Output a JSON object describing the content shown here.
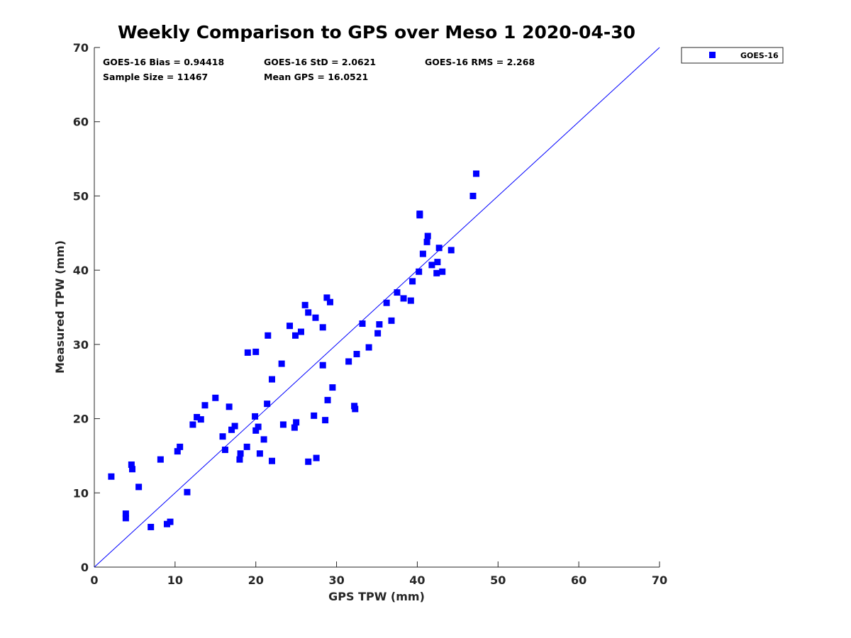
{
  "chart_data": {
    "type": "scatter",
    "title": "Weekly Comparison to GPS over Meso 1 2020-04-30",
    "xlabel": "GPS TPW (mm)",
    "ylabel": "Measured TPW (mm)",
    "xlim": [
      0,
      70
    ],
    "ylim": [
      0,
      70
    ],
    "xticks": [
      "0",
      "10",
      "20",
      "30",
      "40",
      "50",
      "60",
      "70"
    ],
    "yticks": [
      "0",
      "10",
      "20",
      "30",
      "40",
      "50",
      "60",
      "70"
    ],
    "grid": false,
    "legend_position": "outside-top-right",
    "marker_color": "#0000ff",
    "line_color": "#0000ff",
    "reference_line": {
      "name": "1:1 line",
      "x": [
        0,
        70
      ],
      "y": [
        0,
        70
      ]
    },
    "stats": [
      {
        "label": "GOES-16 Bias = 0.94418"
      },
      {
        "label": "GOES-16 StD = 2.0621"
      },
      {
        "label": "GOES-16 RMS = 2.268"
      },
      {
        "label": "Sample Size = 11467"
      },
      {
        "label": "Mean GPS = 16.0521"
      }
    ],
    "series": [
      {
        "name": "GOES-16",
        "marker": "square",
        "points": [
          [
            2.1,
            12.2
          ],
          [
            4.6,
            13.8
          ],
          [
            4.7,
            13.2
          ],
          [
            27.5,
            14.7
          ],
          [
            26.5,
            14.2
          ],
          [
            32.2,
            21.7
          ],
          [
            32.3,
            21.3
          ],
          [
            28.6,
            19.8
          ],
          [
            27.2,
            20.4
          ],
          [
            24.8,
            18.8
          ],
          [
            25.0,
            19.5
          ],
          [
            19.9,
            20.3
          ],
          [
            18.9,
            16.2
          ],
          [
            22.0,
            14.3
          ],
          [
            20.0,
            18.4
          ],
          [
            21.0,
            17.2
          ],
          [
            20.5,
            15.3
          ],
          [
            29.5,
            24.2
          ],
          [
            31.5,
            27.7
          ],
          [
            32.5,
            28.7
          ],
          [
            34.0,
            29.6
          ],
          [
            33.2,
            32.8
          ],
          [
            35.3,
            32.7
          ],
          [
            35.1,
            31.5
          ],
          [
            36.8,
            33.2
          ],
          [
            36.2,
            35.6
          ],
          [
            37.5,
            37.0
          ],
          [
            38.3,
            36.2
          ],
          [
            39.2,
            35.9
          ],
          [
            39.4,
            38.5
          ],
          [
            40.2,
            39.8
          ],
          [
            40.7,
            42.2
          ],
          [
            41.3,
            44.6
          ],
          [
            41.2,
            43.8
          ],
          [
            41.8,
            40.7
          ],
          [
            42.7,
            43.0
          ],
          [
            42.5,
            41.1
          ],
          [
            43.1,
            39.8
          ],
          [
            44.2,
            42.7
          ],
          [
            42.4,
            39.6
          ],
          [
            40.3,
            47.4
          ],
          [
            40.3,
            47.6
          ],
          [
            46.9,
            50.0
          ],
          [
            47.3,
            53.0
          ],
          [
            29.2,
            35.7
          ],
          [
            28.8,
            36.3
          ],
          [
            27.4,
            33.6
          ],
          [
            26.1,
            35.3
          ],
          [
            26.5,
            34.3
          ],
          [
            24.2,
            32.5
          ],
          [
            24.9,
            31.2
          ],
          [
            25.6,
            31.7
          ],
          [
            28.3,
            32.3
          ],
          [
            28.3,
            27.2
          ],
          [
            28.9,
            22.5
          ],
          [
            22.0,
            25.3
          ],
          [
            23.2,
            27.4
          ],
          [
            19.0,
            28.9
          ],
          [
            20.0,
            29.0
          ],
          [
            21.5,
            31.2
          ],
          [
            13.7,
            21.8
          ],
          [
            12.7,
            20.2
          ],
          [
            16.7,
            21.6
          ],
          [
            15.0,
            22.8
          ],
          [
            12.2,
            19.2
          ],
          [
            13.2,
            19.9
          ],
          [
            17.4,
            19.0
          ],
          [
            17.0,
            18.5
          ],
          [
            15.9,
            17.6
          ],
          [
            16.2,
            15.8
          ],
          [
            18.1,
            15.3
          ],
          [
            18.0,
            14.5
          ],
          [
            20.3,
            18.9
          ],
          [
            21.4,
            22.0
          ],
          [
            23.4,
            19.2
          ],
          [
            3.9,
            6.6
          ],
          [
            3.9,
            7.2
          ],
          [
            5.5,
            10.8
          ],
          [
            8.2,
            14.5
          ],
          [
            10.6,
            16.2
          ],
          [
            10.3,
            15.6
          ],
          [
            9.4,
            6.1
          ],
          [
            11.5,
            10.1
          ],
          [
            7.0,
            5.4
          ],
          [
            9.0,
            5.8
          ]
        ]
      }
    ]
  }
}
